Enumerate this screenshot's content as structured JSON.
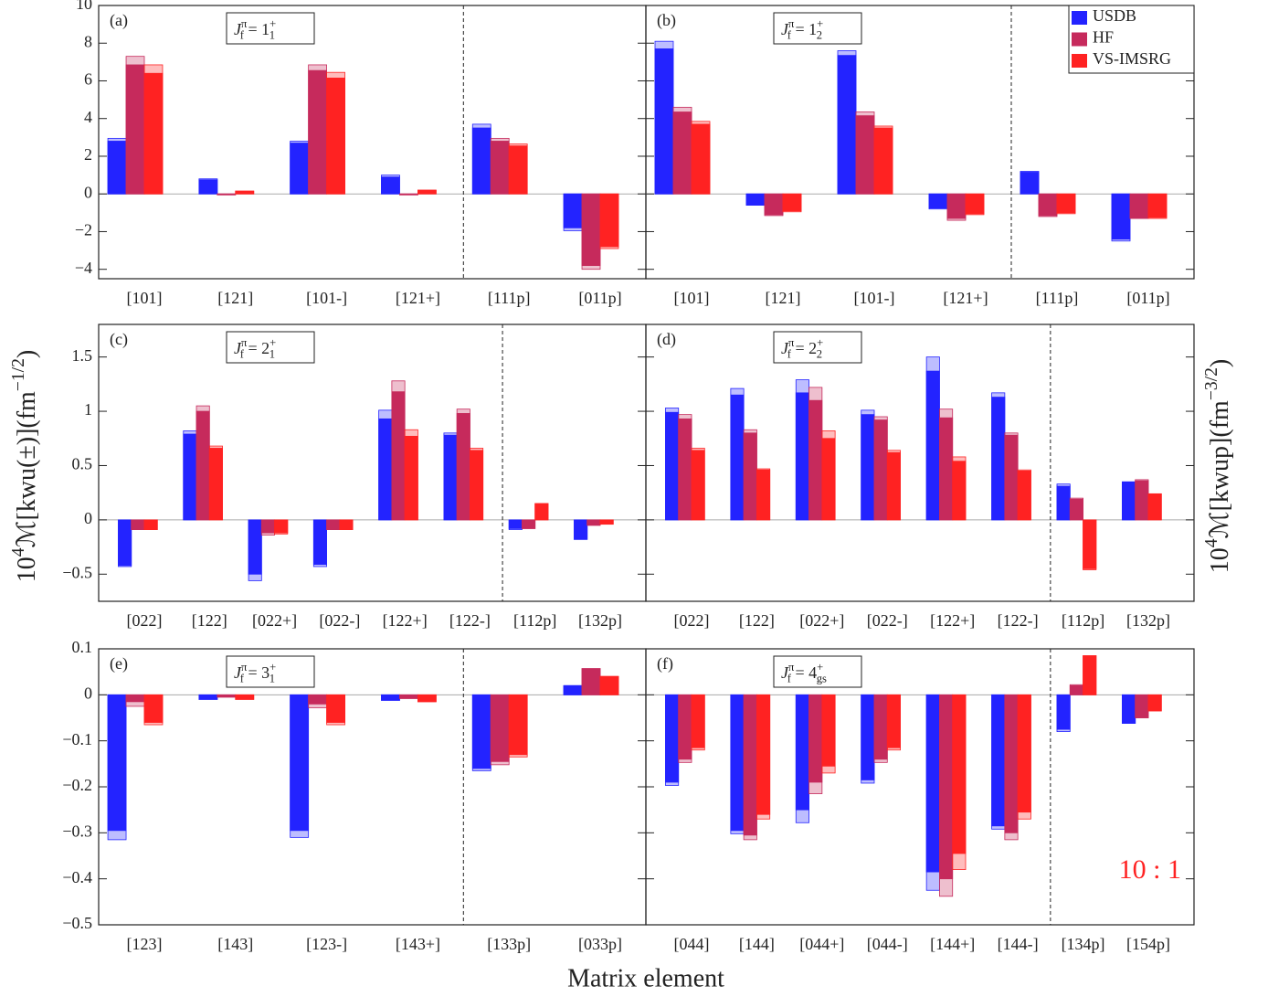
{
  "chart_data": [
    {
      "type": "bar",
      "panel_label": "(a)",
      "state_label": [
        {
          "text": "J",
          "italic": true
        },
        {
          "text": "π",
          "sup": true
        },
        {
          "text": "f",
          "sub": true
        },
        {
          "text": " = 1"
        },
        {
          "text": "+",
          "sup": true
        },
        {
          "text": "1",
          "sub": true
        }
      ],
      "categories": [
        "[101]",
        "[121]",
        "[101-]",
        "[121+]",
        "[111p]",
        "[011p]"
      ],
      "series": [
        {
          "name": "USDB",
          "color": "#2323ff",
          "values": [
            2.8,
            0.75,
            2.7,
            0.9,
            3.5,
            -1.8
          ],
          "values_alt": [
            2.95,
            0.8,
            2.8,
            1.0,
            3.7,
            -1.95
          ]
        },
        {
          "name": "HF",
          "color": "#c62a5c",
          "values": [
            6.85,
            -0.05,
            6.55,
            -0.05,
            2.8,
            -3.8
          ],
          "values_alt": [
            7.3,
            -0.05,
            6.85,
            -0.05,
            2.95,
            -4.0
          ]
        },
        {
          "name": "VS-IMSRG",
          "color": "#ff2222",
          "values": [
            6.4,
            0.15,
            6.15,
            0.2,
            2.55,
            -2.8
          ],
          "values_alt": [
            6.85,
            0.15,
            6.45,
            0.2,
            2.65,
            -2.9
          ]
        }
      ],
      "ylim": [
        -4.5,
        10
      ],
      "yticks": [
        {
          "value": -4,
          "label": "−4"
        },
        {
          "value": -2,
          "label": "−2"
        },
        0,
        2,
        4,
        6,
        8,
        10
      ]
    },
    {
      "type": "bar",
      "panel_label": "(b)",
      "state_label": [
        {
          "text": "J",
          "italic": true
        },
        {
          "text": "π",
          "sup": true
        },
        {
          "text": "f",
          "sub": true
        },
        {
          "text": " = 1"
        },
        {
          "text": "+",
          "sup": true
        },
        {
          "text": "2",
          "sub": true
        }
      ],
      "categories": [
        "[101]",
        "[121]",
        "[101-]",
        "[121+]",
        "[111p]",
        "[011p]"
      ],
      "series": [
        {
          "name": "USDB",
          "color": "#2323ff",
          "values": [
            7.7,
            -0.6,
            7.35,
            -0.75,
            1.15,
            -2.4
          ],
          "values_alt": [
            8.1,
            -0.6,
            7.6,
            -0.8,
            1.2,
            -2.5
          ]
        },
        {
          "name": "HF",
          "color": "#c62a5c",
          "values": [
            4.35,
            -1.1,
            4.15,
            -1.3,
            -1.15,
            -1.3
          ],
          "values_alt": [
            4.6,
            -1.15,
            4.35,
            -1.4,
            -1.2,
            -1.3
          ]
        },
        {
          "name": "VS-IMSRG",
          "color": "#ff2222",
          "values": [
            3.7,
            -0.9,
            3.5,
            -1.05,
            -1.0,
            -1.25
          ],
          "values_alt": [
            3.85,
            -0.95,
            3.6,
            -1.1,
            -1.05,
            -1.3
          ]
        }
      ],
      "ylim": [
        -4.5,
        10
      ],
      "yticks": [
        -4,
        -2,
        0,
        2,
        4,
        6,
        8,
        10
      ],
      "legend": "upper right"
    },
    {
      "type": "bar",
      "panel_label": "(c)",
      "state_label": [
        {
          "text": "J",
          "italic": true
        },
        {
          "text": "π",
          "sup": true
        },
        {
          "text": "f",
          "sub": true
        },
        {
          "text": " = 2"
        },
        {
          "text": "+",
          "sup": true
        },
        {
          "text": "1",
          "sub": true
        }
      ],
      "categories": [
        "[022]",
        "[122]",
        "[022+]",
        "[022-]",
        "[122+]",
        "[122-]",
        "[112p]",
        "[132p]"
      ],
      "series": [
        {
          "name": "USDB",
          "color": "#2323ff",
          "values": [
            -0.42,
            0.79,
            -0.5,
            -0.41,
            0.93,
            0.78,
            -0.08,
            -0.18
          ],
          "values_alt": [
            -0.43,
            0.82,
            -0.56,
            -0.43,
            1.01,
            0.8,
            -0.09,
            -0.18
          ]
        },
        {
          "name": "HF",
          "color": "#c62a5c",
          "values": [
            -0.09,
            1.0,
            -0.12,
            -0.09,
            1.18,
            0.98,
            -0.08,
            -0.05
          ],
          "values_alt": [
            -0.09,
            1.05,
            -0.14,
            -0.09,
            1.28,
            1.02,
            -0.08,
            -0.05
          ]
        },
        {
          "name": "VS-IMSRG",
          "color": "#ff2222",
          "values": [
            -0.09,
            0.66,
            -0.12,
            -0.09,
            0.77,
            0.64,
            0.15,
            -0.04
          ],
          "values_alt": [
            -0.09,
            0.68,
            -0.13,
            -0.09,
            0.83,
            0.66,
            0.15,
            -0.04
          ]
        }
      ],
      "ylim": [
        -0.75,
        1.8
      ],
      "yticks": [
        {
          "value": -0.5,
          "label": "−0.5"
        },
        0,
        0.5,
        1,
        1.5
      ]
    },
    {
      "type": "bar",
      "panel_label": "(d)",
      "state_label": [
        {
          "text": "J",
          "italic": true
        },
        {
          "text": "π",
          "sup": true
        },
        {
          "text": "f",
          "sub": true
        },
        {
          "text": " = 2"
        },
        {
          "text": "+",
          "sup": true
        },
        {
          "text": "2",
          "sub": true
        }
      ],
      "categories": [
        "[022]",
        "[122]",
        "[022+]",
        "[022-]",
        "[122+]",
        "[122-]",
        "[112p]",
        "[132p]"
      ],
      "series": [
        {
          "name": "USDB",
          "color": "#2323ff",
          "values": [
            0.99,
            1.15,
            1.17,
            0.97,
            1.37,
            1.13,
            0.31,
            0.35
          ],
          "values_alt": [
            1.03,
            1.21,
            1.29,
            1.01,
            1.5,
            1.17,
            0.33,
            0.35
          ]
        },
        {
          "name": "HF",
          "color": "#c62a5c",
          "values": [
            0.93,
            0.8,
            1.1,
            0.92,
            0.94,
            0.78,
            0.19,
            0.36
          ],
          "values_alt": [
            0.97,
            0.83,
            1.22,
            0.95,
            1.02,
            0.8,
            0.2,
            0.37
          ]
        },
        {
          "name": "VS-IMSRG",
          "color": "#ff2222",
          "values": [
            0.64,
            0.46,
            0.75,
            0.62,
            0.54,
            0.45,
            -0.45,
            0.24
          ],
          "values_alt": [
            0.66,
            0.47,
            0.82,
            0.64,
            0.58,
            0.46,
            -0.46,
            0.24
          ]
        }
      ],
      "ylim": [
        -0.75,
        1.8
      ],
      "yticks": [
        -0.5,
        0,
        0.5,
        1,
        1.5
      ]
    },
    {
      "type": "bar",
      "panel_label": "(e)",
      "state_label": [
        {
          "text": "J",
          "italic": true
        },
        {
          "text": "π",
          "sup": true
        },
        {
          "text": "f",
          "sub": true
        },
        {
          "text": " = 3"
        },
        {
          "text": "+",
          "sup": true
        },
        {
          "text": "1",
          "sub": true
        }
      ],
      "categories": [
        "[123]",
        "[143]",
        "[123-]",
        "[143+]",
        "[133p]",
        "[033p]"
      ],
      "series": [
        {
          "name": "USDB",
          "color": "#2323ff",
          "values": [
            -0.295,
            -0.01,
            -0.295,
            -0.012,
            -0.16,
            0.02
          ],
          "values_alt": [
            -0.315,
            -0.01,
            -0.31,
            -0.012,
            -0.165,
            0.02
          ]
        },
        {
          "name": "HF",
          "color": "#c62a5c",
          "values": [
            -0.015,
            -0.005,
            -0.02,
            -0.008,
            -0.145,
            0.057
          ],
          "values_alt": [
            -0.025,
            -0.005,
            -0.028,
            -0.008,
            -0.152,
            0.057
          ]
        },
        {
          "name": "VS-IMSRG",
          "color": "#ff2222",
          "values": [
            -0.06,
            -0.01,
            -0.06,
            -0.015,
            -0.13,
            0.04
          ],
          "values_alt": [
            -0.065,
            -0.01,
            -0.065,
            -0.015,
            -0.135,
            0.04
          ]
        }
      ],
      "ylim": [
        -0.5,
        0.1
      ],
      "yticks": [
        {
          "value": -0.5,
          "label": "−0.5"
        },
        {
          "value": -0.4,
          "label": "−0.4"
        },
        {
          "value": -0.3,
          "label": "−0.3"
        },
        {
          "value": -0.2,
          "label": "−0.2"
        },
        {
          "value": -0.1,
          "label": "−0.1"
        },
        0,
        0.1
      ]
    },
    {
      "type": "bar",
      "panel_label": "(f)",
      "state_label": [
        {
          "text": "J",
          "italic": true
        },
        {
          "text": "π",
          "sup": true
        },
        {
          "text": "f",
          "sub": true
        },
        {
          "text": " = 4"
        },
        {
          "text": "+",
          "sup": true
        },
        {
          "text": "gs",
          "sub": true
        }
      ],
      "categories": [
        "[044]",
        "[144]",
        "[044+]",
        "[044-]",
        "[144+]",
        "[144-]",
        "[134p]",
        "[154p]"
      ],
      "series": [
        {
          "name": "USDB",
          "color": "#2323ff",
          "values": [
            -0.19,
            -0.295,
            -0.25,
            -0.185,
            -0.385,
            -0.285,
            -0.075,
            -0.062
          ],
          "values_alt": [
            -0.197,
            -0.302,
            -0.278,
            -0.192,
            -0.425,
            -0.292,
            -0.08,
            -0.062
          ]
        },
        {
          "name": "HF",
          "color": "#c62a5c",
          "values": [
            -0.14,
            -0.305,
            -0.19,
            -0.14,
            -0.4,
            -0.3,
            0.02,
            -0.05
          ],
          "values_alt": [
            -0.147,
            -0.315,
            -0.215,
            -0.147,
            -0.438,
            -0.315,
            0.022,
            -0.05
          ]
        },
        {
          "name": "VS-IMSRG",
          "color": "#ff2222",
          "values": [
            -0.115,
            -0.26,
            -0.155,
            -0.115,
            -0.345,
            -0.255,
            0.085,
            -0.035
          ],
          "values_alt": [
            -0.12,
            -0.27,
            -0.17,
            -0.12,
            -0.38,
            -0.27,
            0.085,
            -0.035
          ]
        }
      ],
      "ylim": [
        -0.5,
        0.1
      ],
      "yticks": [
        -0.5,
        -0.4,
        -0.3,
        -0.2,
        -0.1,
        0,
        0.1
      ],
      "annotation": "10 : 1"
    }
  ],
  "x_label": "Matrix element",
  "y_label_left": [
    {
      "text": "10"
    },
    {
      "text": "4",
      "sup": true
    },
    {
      "text": "ℳ[kwu(±)](fm"
    },
    {
      "text": "−1/2",
      "sup": true
    },
    {
      "text": ")"
    }
  ],
  "y_label_right": [
    {
      "text": "10"
    },
    {
      "text": "4",
      "sup": true
    },
    {
      "text": "ℳ[kwup](fm"
    },
    {
      "text": "−3/2",
      "sup": true
    },
    {
      "text": ")"
    }
  ]
}
